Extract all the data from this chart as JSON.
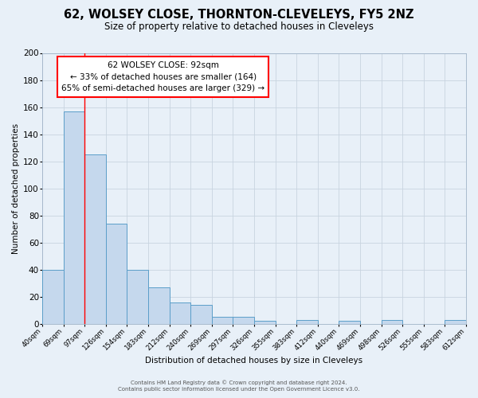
{
  "title": "62, WOLSEY CLOSE, THORNTON-CLEVELEYS, FY5 2NZ",
  "subtitle": "Size of property relative to detached houses in Cleveleys",
  "xlabel": "Distribution of detached houses by size in Cleveleys",
  "ylabel": "Number of detached properties",
  "bar_edges": [
    40,
    69,
    97,
    126,
    154,
    183,
    212,
    240,
    269,
    297,
    326,
    355,
    383,
    412,
    440,
    469,
    498,
    526,
    555,
    583,
    612
  ],
  "bar_heights": [
    40,
    157,
    125,
    74,
    40,
    27,
    16,
    14,
    5,
    5,
    2,
    0,
    3,
    0,
    2,
    0,
    3,
    0,
    0,
    3
  ],
  "tick_labels": [
    "40sqm",
    "69sqm",
    "97sqm",
    "126sqm",
    "154sqm",
    "183sqm",
    "212sqm",
    "240sqm",
    "269sqm",
    "297sqm",
    "326sqm",
    "355sqm",
    "383sqm",
    "412sqm",
    "440sqm",
    "469sqm",
    "498sqm",
    "526sqm",
    "555sqm",
    "583sqm",
    "612sqm"
  ],
  "bar_color": "#c5d8ed",
  "bar_edge_color": "#5b9ec9",
  "red_line_x": 97,
  "ylim": [
    0,
    200
  ],
  "yticks": [
    0,
    20,
    40,
    60,
    80,
    100,
    120,
    140,
    160,
    180,
    200
  ],
  "annotation_title": "62 WOLSEY CLOSE: 92sqm",
  "annotation_line1": "← 33% of detached houses are smaller (164)",
  "annotation_line2": "65% of semi-detached houses are larger (329) →",
  "footer1": "Contains HM Land Registry data © Crown copyright and database right 2024.",
  "footer2": "Contains public sector information licensed under the Open Government Licence v3.0.",
  "bg_color": "#e8f0f8",
  "plot_bg_color": "#e8f0f8",
  "grid_color": "#c8d4e0",
  "title_fontsize": 10.5,
  "subtitle_fontsize": 8.5,
  "ylabel_fontsize": 7.5,
  "xlabel_fontsize": 7.5,
  "ytick_fontsize": 7.5,
  "xtick_fontsize": 6.2,
  "footer_fontsize": 5.0,
  "ann_fontsize": 7.5
}
